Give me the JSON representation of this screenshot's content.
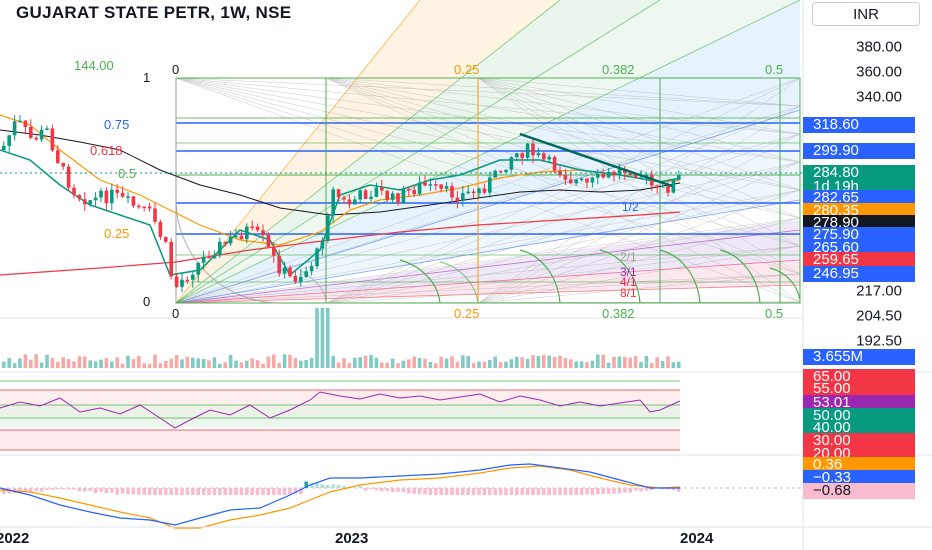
{
  "header": {
    "title": "GUJARAT STATE PETR, 1W, NSE",
    "currency": "INR"
  },
  "price_scale": {
    "ticks": [
      "380.00",
      "360.00",
      "340.00",
      "217.00",
      "204.50",
      "192.50"
    ],
    "badges": [
      {
        "label": "318.60",
        "color": "#2962ff"
      },
      {
        "label": "299.90",
        "color": "#2962ff"
      },
      {
        "label": "284.80",
        "color": "#089981"
      },
      {
        "label": "1d 19h",
        "color": "#089981"
      },
      {
        "label": "282.65",
        "color": "#2962ff"
      },
      {
        "label": "280.35",
        "color": "#ff9800"
      },
      {
        "label": "278.90",
        "color": "#131722"
      },
      {
        "label": "275.90",
        "color": "#2962ff"
      },
      {
        "label": "265.60",
        "color": "#2962ff"
      },
      {
        "label": "259.65",
        "color": "#f23645"
      },
      {
        "label": "246.95",
        "color": "#2962ff"
      }
    ],
    "volume_badge": {
      "label": "3.655M",
      "color": "#2962ff"
    },
    "rsi_badges": [
      {
        "label": "65.00",
        "color": "#f23645"
      },
      {
        "label": "55.00",
        "color": "#f23645"
      },
      {
        "label": "53.01",
        "color": "#9c27b0"
      },
      {
        "label": "50.00",
        "color": "#089981"
      },
      {
        "label": "40.00",
        "color": "#089981"
      },
      {
        "label": "30.00",
        "color": "#f23645"
      },
      {
        "label": "20.00",
        "color": "#f23645"
      }
    ],
    "macd_badges": [
      {
        "label": "0.36",
        "color": "#ff9800"
      },
      {
        "label": "−0.33",
        "color": "#2962ff"
      },
      {
        "label": "−0.68",
        "color": "#f8bbd0"
      }
    ]
  },
  "time_axis": {
    "labels": [
      "2022",
      "2023",
      "2024"
    ]
  },
  "fib_labels": {
    "top_left_value": "144.00",
    "left": [
      "1",
      "0.75",
      "0.618",
      "0.5",
      "0.25",
      "0"
    ],
    "top": [
      "0",
      "0.25",
      "0.382",
      "0.5"
    ],
    "bottom": [
      "0",
      "0.25",
      "0.382",
      "0.5"
    ],
    "ratios": [
      "2/1",
      "3/1",
      "4/1",
      "8/1",
      "1/2"
    ]
  },
  "colors": {
    "up": "#089981",
    "down": "#f23645",
    "fib_blue": "#2962ff",
    "fib_green": "#4caf50",
    "fib_orange": "#ff9800"
  }
}
